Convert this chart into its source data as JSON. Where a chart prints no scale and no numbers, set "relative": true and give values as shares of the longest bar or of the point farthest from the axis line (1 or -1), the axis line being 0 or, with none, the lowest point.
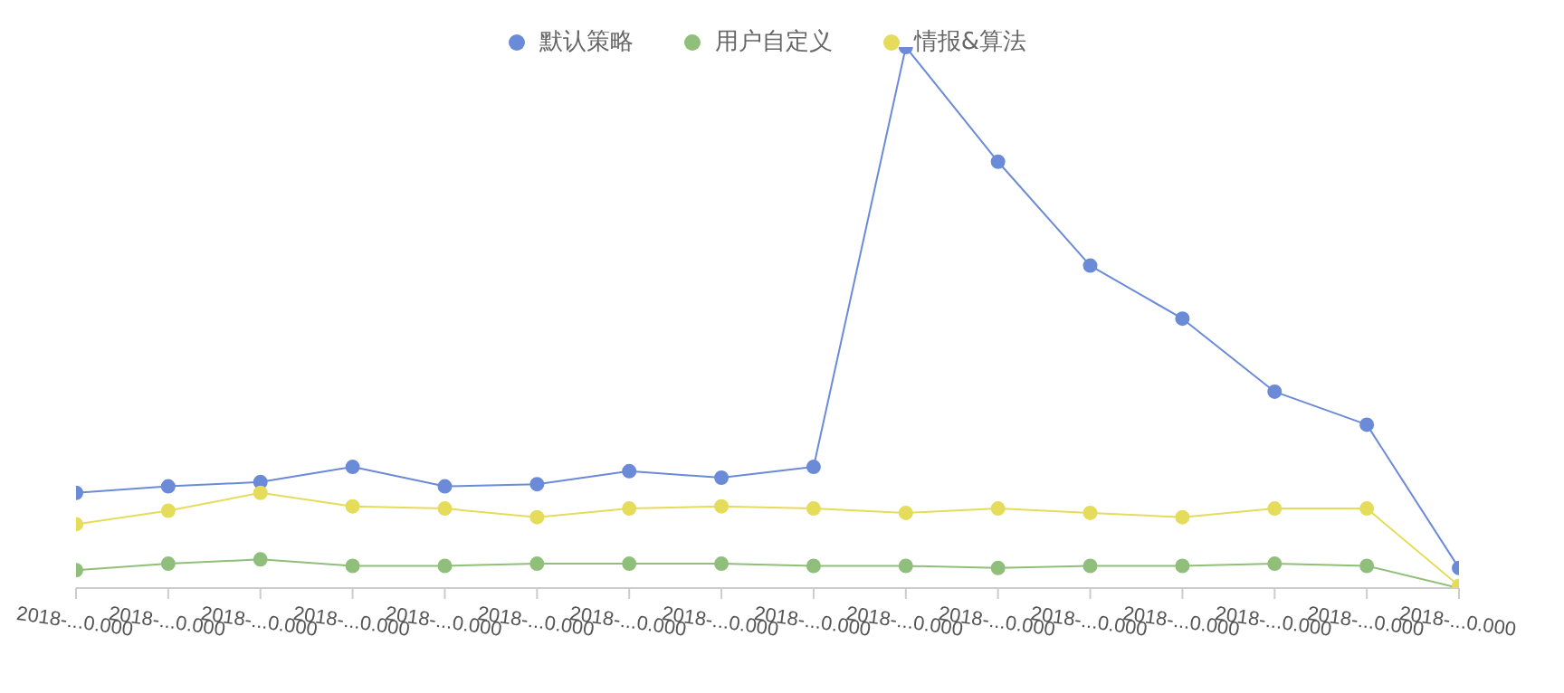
{
  "chart_data": {
    "type": "line",
    "relative": true,
    "categories": [
      "2018-...0.000",
      "2018-...0.000",
      "2018-...0.000",
      "2018-...0.000",
      "2018-...0.000",
      "2018-...0.000",
      "2018-...0.000",
      "2018-...0.000",
      "2018-...0.000",
      "2018-...0.000",
      "2018-...0.000",
      "2018-...0.000",
      "2018-...0.000",
      "2018-...0.000",
      "2018-...0.000",
      "2018-...0.000"
    ],
    "series": [
      {
        "name": "默认策略",
        "color": "#6b8ad8",
        "values": [
          0.176,
          0.188,
          0.196,
          0.224,
          0.188,
          0.192,
          0.216,
          0.204,
          0.224,
          1,
          0.788,
          0.596,
          0.498,
          0.363,
          0.302,
          0.037
        ]
      },
      {
        "name": "用户自定义",
        "color": "#8fbf7a",
        "values": [
          0.033,
          0.045,
          0.053,
          0.041,
          0.041,
          0.045,
          0.045,
          0.045,
          0.041,
          0.041,
          0.037,
          0.041,
          0.041,
          0.045,
          0.041,
          0
        ]
      },
      {
        "name": "情报&算法",
        "color": "#e5dc5b",
        "values": [
          0.118,
          0.143,
          0.176,
          0.151,
          0.147,
          0.131,
          0.147,
          0.151,
          0.147,
          0.139,
          0.147,
          0.139,
          0.131,
          0.147,
          0.147,
          0.004
        ]
      }
    ],
    "legend": "top",
    "marker": "circle",
    "line_style": "solid",
    "grid": false
  }
}
